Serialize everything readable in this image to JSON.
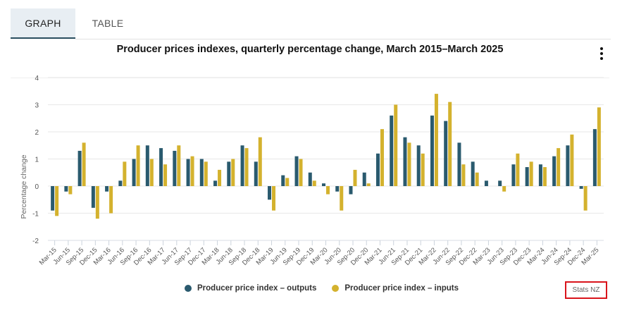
{
  "tabs": [
    {
      "label": "GRAPH",
      "active": true
    },
    {
      "label": "TABLE",
      "active": false
    }
  ],
  "menu_icon": "more-vertical-icon",
  "source_label": "Stats NZ",
  "colors": {
    "outputs": "#2a5a6e",
    "inputs": "#d4b22e",
    "grid": "#ececec",
    "axis_text": "#555555",
    "tab_active_bg": "#e8eef3",
    "tab_indicator": "#2a4e5f",
    "source_border": "#d9141b"
  },
  "chart_data": {
    "type": "bar",
    "title": "Producer prices indexes, quarterly percentage change, March 2015–March 2025",
    "xlabel": "",
    "ylabel": "Percentage change",
    "ylim": [
      -2,
      4
    ],
    "yticks": [
      -2,
      -1,
      0,
      1,
      2,
      3,
      4
    ],
    "grid": true,
    "legend_position": "bottom",
    "categories": [
      "Mar-15",
      "Jun-15",
      "Sep-15",
      "Dec-15",
      "Mar-16",
      "Jun-16",
      "Sep-16",
      "Dec-16",
      "Mar-17",
      "Jun-17",
      "Sep-17",
      "Dec-17",
      "Mar-18",
      "Jun-18",
      "Sep-18",
      "Dec-18",
      "Mar-19",
      "Jun-19",
      "Sep-19",
      "Dec-19",
      "Mar-20",
      "Jun-20",
      "Sep-20",
      "Dec-20",
      "Mar-21",
      "Jun-21",
      "Sep-21",
      "Dec-21",
      "Mar-22",
      "Jun-22",
      "Sep-22",
      "Dec-22",
      "Mar-23",
      "Jun-23",
      "Sep-23",
      "Dec-23",
      "Mar-24",
      "Jun-24",
      "Sep-24",
      "Dec-24",
      "Mar-25"
    ],
    "series": [
      {
        "name": "Producer price index – outputs",
        "values": [
          -0.9,
          -0.2,
          1.3,
          -0.8,
          -0.2,
          0.2,
          1.0,
          1.5,
          1.4,
          1.3,
          1.0,
          1.0,
          0.2,
          0.9,
          1.5,
          0.9,
          -0.5,
          0.4,
          1.1,
          0.5,
          0.1,
          -0.2,
          -0.3,
          0.5,
          1.2,
          2.6,
          1.8,
          1.5,
          2.6,
          2.4,
          1.6,
          0.9,
          0.2,
          0.2,
          0.8,
          0.7,
          0.8,
          1.1,
          1.5,
          -0.1,
          2.1
        ]
      },
      {
        "name": "Producer price index – inputs",
        "values": [
          -1.1,
          -0.3,
          1.6,
          -1.2,
          -1.0,
          0.9,
          1.5,
          1.0,
          0.8,
          1.5,
          1.1,
          0.9,
          0.6,
          1.0,
          1.4,
          1.8,
          -0.9,
          0.3,
          1.0,
          0.2,
          -0.3,
          -0.9,
          0.6,
          0.1,
          2.1,
          3.0,
          1.6,
          1.2,
          3.4,
          3.1,
          0.8,
          0.5,
          0.0,
          -0.2,
          1.2,
          0.9,
          0.7,
          1.4,
          1.9,
          -0.9,
          2.9
        ]
      }
    ]
  }
}
